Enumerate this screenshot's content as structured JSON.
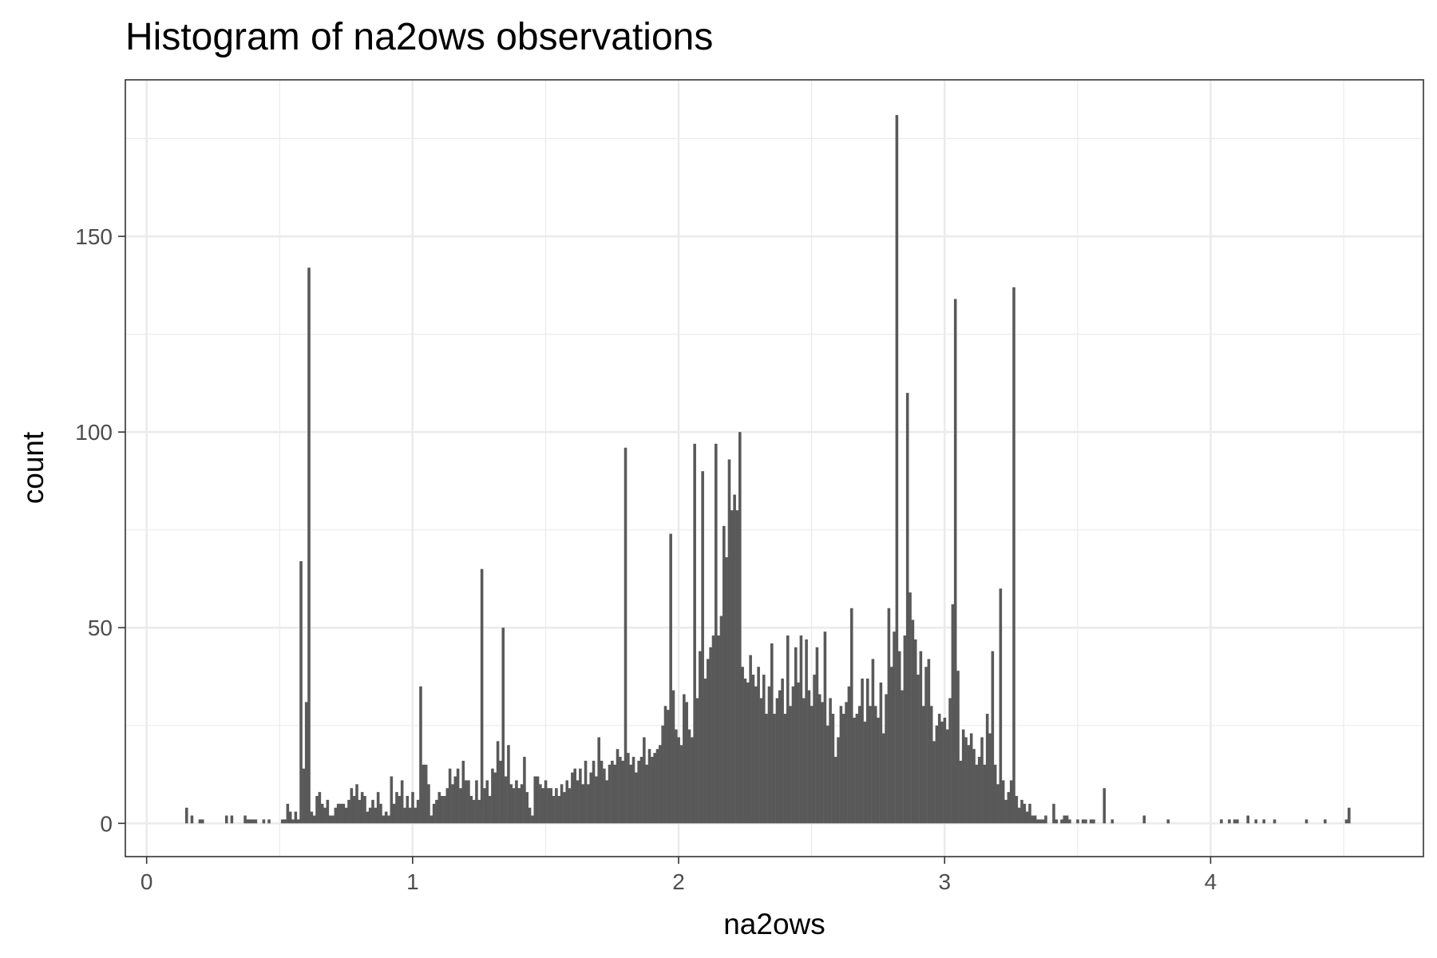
{
  "chart_data": {
    "type": "bar",
    "title": "Histogram of na2ows observations",
    "xlabel": "na2ows",
    "ylabel": "count",
    "xlim": [
      -0.08,
      4.8
    ],
    "ylim": [
      -8.5,
      190
    ],
    "x_ticks": [
      0,
      1,
      2,
      3,
      4
    ],
    "y_ticks": [
      0,
      50,
      100,
      150
    ],
    "x_tick_labels": [
      "0",
      "1",
      "2",
      "3",
      "4"
    ],
    "y_tick_labels": [
      "0",
      "50",
      "100",
      "150"
    ],
    "grid": true,
    "legend": "none",
    "bar_color": "#595959",
    "bin_width": 0.01,
    "bins": [
      [
        0.15,
        4
      ],
      [
        0.17,
        2
      ],
      [
        0.2,
        1
      ],
      [
        0.21,
        1
      ],
      [
        0.3,
        2
      ],
      [
        0.32,
        2
      ],
      [
        0.37,
        2
      ],
      [
        0.38,
        1
      ],
      [
        0.39,
        1
      ],
      [
        0.4,
        1
      ],
      [
        0.41,
        1
      ],
      [
        0.44,
        1
      ],
      [
        0.46,
        1
      ],
      [
        0.51,
        1
      ],
      [
        0.52,
        1
      ],
      [
        0.53,
        5
      ],
      [
        0.54,
        3
      ],
      [
        0.55,
        1
      ],
      [
        0.56,
        3
      ],
      [
        0.57,
        1
      ],
      [
        0.58,
        67
      ],
      [
        0.59,
        14
      ],
      [
        0.6,
        31
      ],
      [
        0.61,
        142
      ],
      [
        0.62,
        3
      ],
      [
        0.63,
        2
      ],
      [
        0.64,
        7
      ],
      [
        0.65,
        8
      ],
      [
        0.66,
        5
      ],
      [
        0.67,
        4
      ],
      [
        0.68,
        6
      ],
      [
        0.69,
        2
      ],
      [
        0.7,
        2
      ],
      [
        0.71,
        4
      ],
      [
        0.72,
        5
      ],
      [
        0.73,
        5
      ],
      [
        0.74,
        5
      ],
      [
        0.75,
        4
      ],
      [
        0.76,
        6
      ],
      [
        0.77,
        9
      ],
      [
        0.78,
        7
      ],
      [
        0.79,
        10
      ],
      [
        0.8,
        6
      ],
      [
        0.81,
        8
      ],
      [
        0.82,
        7
      ],
      [
        0.83,
        3
      ],
      [
        0.84,
        4
      ],
      [
        0.85,
        6
      ],
      [
        0.86,
        4
      ],
      [
        0.87,
        8
      ],
      [
        0.88,
        5
      ],
      [
        0.89,
        2
      ],
      [
        0.9,
        3
      ],
      [
        0.91,
        2
      ],
      [
        0.92,
        12
      ],
      [
        0.93,
        5
      ],
      [
        0.94,
        8
      ],
      [
        0.95,
        7
      ],
      [
        0.96,
        11
      ],
      [
        0.97,
        4
      ],
      [
        0.98,
        7
      ],
      [
        0.99,
        4
      ],
      [
        1.0,
        8
      ],
      [
        1.01,
        4
      ],
      [
        1.02,
        6
      ],
      [
        1.03,
        35
      ],
      [
        1.04,
        15
      ],
      [
        1.05,
        15
      ],
      [
        1.06,
        10
      ],
      [
        1.07,
        2
      ],
      [
        1.08,
        5
      ],
      [
        1.09,
        6
      ],
      [
        1.1,
        8
      ],
      [
        1.11,
        7
      ],
      [
        1.12,
        7
      ],
      [
        1.13,
        9
      ],
      [
        1.14,
        14
      ],
      [
        1.15,
        10
      ],
      [
        1.16,
        12
      ],
      [
        1.17,
        14
      ],
      [
        1.18,
        9
      ],
      [
        1.19,
        16
      ],
      [
        1.2,
        11
      ],
      [
        1.21,
        11
      ],
      [
        1.22,
        7
      ],
      [
        1.23,
        6
      ],
      [
        1.24,
        11
      ],
      [
        1.25,
        6
      ],
      [
        1.26,
        65
      ],
      [
        1.27,
        9
      ],
      [
        1.28,
        11
      ],
      [
        1.29,
        7
      ],
      [
        1.3,
        14
      ],
      [
        1.31,
        13
      ],
      [
        1.32,
        21
      ],
      [
        1.33,
        16
      ],
      [
        1.34,
        50
      ],
      [
        1.35,
        12
      ],
      [
        1.36,
        20
      ],
      [
        1.37,
        10
      ],
      [
        1.38,
        9
      ],
      [
        1.39,
        11
      ],
      [
        1.4,
        9
      ],
      [
        1.41,
        10
      ],
      [
        1.42,
        17
      ],
      [
        1.43,
        8
      ],
      [
        1.44,
        4
      ],
      [
        1.45,
        2
      ],
      [
        1.46,
        12
      ],
      [
        1.47,
        12
      ],
      [
        1.48,
        10
      ],
      [
        1.49,
        9
      ],
      [
        1.5,
        11
      ],
      [
        1.51,
        9
      ],
      [
        1.52,
        9
      ],
      [
        1.53,
        7
      ],
      [
        1.54,
        9
      ],
      [
        1.55,
        7
      ],
      [
        1.56,
        10
      ],
      [
        1.57,
        8
      ],
      [
        1.58,
        11
      ],
      [
        1.59,
        9
      ],
      [
        1.6,
        13
      ],
      [
        1.61,
        14
      ],
      [
        1.62,
        11
      ],
      [
        1.63,
        14
      ],
      [
        1.64,
        10
      ],
      [
        1.65,
        16
      ],
      [
        1.66,
        10
      ],
      [
        1.67,
        13
      ],
      [
        1.68,
        16
      ],
      [
        1.69,
        12
      ],
      [
        1.7,
        22
      ],
      [
        1.71,
        16
      ],
      [
        1.72,
        14
      ],
      [
        1.73,
        11
      ],
      [
        1.74,
        15
      ],
      [
        1.75,
        16
      ],
      [
        1.76,
        15
      ],
      [
        1.77,
        19
      ],
      [
        1.78,
        17
      ],
      [
        1.79,
        16
      ],
      [
        1.8,
        96
      ],
      [
        1.81,
        18
      ],
      [
        1.82,
        15
      ],
      [
        1.83,
        17
      ],
      [
        1.84,
        13
      ],
      [
        1.85,
        16
      ],
      [
        1.86,
        17
      ],
      [
        1.87,
        22
      ],
      [
        1.88,
        15
      ],
      [
        1.89,
        19
      ],
      [
        1.9,
        17
      ],
      [
        1.91,
        18
      ],
      [
        1.92,
        19
      ],
      [
        1.93,
        20
      ],
      [
        1.94,
        25
      ],
      [
        1.95,
        30
      ],
      [
        1.96,
        29
      ],
      [
        1.97,
        74
      ],
      [
        1.98,
        34
      ],
      [
        1.99,
        24
      ],
      [
        2.0,
        22
      ],
      [
        2.01,
        20
      ],
      [
        2.02,
        33
      ],
      [
        2.03,
        31
      ],
      [
        2.04,
        24
      ],
      [
        2.05,
        22
      ],
      [
        2.06,
        97
      ],
      [
        2.07,
        32
      ],
      [
        2.08,
        44
      ],
      [
        2.09,
        90
      ],
      [
        2.1,
        37
      ],
      [
        2.11,
        42
      ],
      [
        2.12,
        45
      ],
      [
        2.13,
        48
      ],
      [
        2.14,
        97
      ],
      [
        2.15,
        48
      ],
      [
        2.16,
        53
      ],
      [
        2.17,
        76
      ],
      [
        2.18,
        68
      ],
      [
        2.19,
        93
      ],
      [
        2.2,
        80
      ],
      [
        2.21,
        84
      ],
      [
        2.22,
        80
      ],
      [
        2.23,
        100
      ],
      [
        2.24,
        40
      ],
      [
        2.25,
        37
      ],
      [
        2.26,
        36
      ],
      [
        2.27,
        43
      ],
      [
        2.28,
        38
      ],
      [
        2.29,
        35
      ],
      [
        2.3,
        40
      ],
      [
        2.31,
        32
      ],
      [
        2.32,
        38
      ],
      [
        2.33,
        28
      ],
      [
        2.34,
        35
      ],
      [
        2.35,
        46
      ],
      [
        2.36,
        28
      ],
      [
        2.37,
        32
      ],
      [
        2.38,
        34
      ],
      [
        2.39,
        37
      ],
      [
        2.4,
        28
      ],
      [
        2.41,
        48
      ],
      [
        2.42,
        30
      ],
      [
        2.43,
        35
      ],
      [
        2.44,
        45
      ],
      [
        2.45,
        36
      ],
      [
        2.46,
        48
      ],
      [
        2.47,
        32
      ],
      [
        2.48,
        47
      ],
      [
        2.49,
        34
      ],
      [
        2.5,
        30
      ],
      [
        2.51,
        38
      ],
      [
        2.52,
        45
      ],
      [
        2.53,
        33
      ],
      [
        2.54,
        31
      ],
      [
        2.55,
        49
      ],
      [
        2.56,
        25
      ],
      [
        2.57,
        32
      ],
      [
        2.58,
        28
      ],
      [
        2.59,
        17
      ],
      [
        2.6,
        22
      ],
      [
        2.61,
        30
      ],
      [
        2.62,
        28
      ],
      [
        2.63,
        31
      ],
      [
        2.64,
        35
      ],
      [
        2.65,
        55
      ],
      [
        2.66,
        27
      ],
      [
        2.67,
        28
      ],
      [
        2.68,
        30
      ],
      [
        2.69,
        37
      ],
      [
        2.7,
        26
      ],
      [
        2.71,
        37
      ],
      [
        2.72,
        30
      ],
      [
        2.73,
        42
      ],
      [
        2.74,
        30
      ],
      [
        2.75,
        27
      ],
      [
        2.76,
        36
      ],
      [
        2.77,
        23
      ],
      [
        2.78,
        33
      ],
      [
        2.79,
        55
      ],
      [
        2.8,
        40
      ],
      [
        2.81,
        49
      ],
      [
        2.82,
        181
      ],
      [
        2.83,
        44
      ],
      [
        2.84,
        34
      ],
      [
        2.85,
        48
      ],
      [
        2.86,
        110
      ],
      [
        2.87,
        59
      ],
      [
        2.88,
        52
      ],
      [
        2.89,
        47
      ],
      [
        2.9,
        38
      ],
      [
        2.91,
        44
      ],
      [
        2.92,
        30
      ],
      [
        2.93,
        40
      ],
      [
        2.94,
        42
      ],
      [
        2.95,
        30
      ],
      [
        2.96,
        21
      ],
      [
        2.97,
        25
      ],
      [
        2.98,
        28
      ],
      [
        2.99,
        26
      ],
      [
        3.0,
        27
      ],
      [
        3.01,
        24
      ],
      [
        3.02,
        32
      ],
      [
        3.03,
        56
      ],
      [
        3.04,
        134
      ],
      [
        3.05,
        39
      ],
      [
        3.06,
        16
      ],
      [
        3.07,
        24
      ],
      [
        3.08,
        22
      ],
      [
        3.09,
        20
      ],
      [
        3.1,
        23
      ],
      [
        3.11,
        19
      ],
      [
        3.12,
        15
      ],
      [
        3.13,
        17
      ],
      [
        3.14,
        22
      ],
      [
        3.15,
        15
      ],
      [
        3.16,
        28
      ],
      [
        3.17,
        23
      ],
      [
        3.18,
        44
      ],
      [
        3.19,
        15
      ],
      [
        3.2,
        10
      ],
      [
        3.21,
        60
      ],
      [
        3.22,
        11
      ],
      [
        3.23,
        6
      ],
      [
        3.24,
        8
      ],
      [
        3.25,
        11
      ],
      [
        3.26,
        137
      ],
      [
        3.27,
        7
      ],
      [
        3.28,
        4
      ],
      [
        3.29,
        6
      ],
      [
        3.3,
        5
      ],
      [
        3.31,
        3
      ],
      [
        3.32,
        5
      ],
      [
        3.33,
        2
      ],
      [
        3.34,
        2
      ],
      [
        3.35,
        1
      ],
      [
        3.36,
        1
      ],
      [
        3.37,
        1
      ],
      [
        3.38,
        2
      ],
      [
        3.41,
        5
      ],
      [
        3.42,
        1
      ],
      [
        3.44,
        1
      ],
      [
        3.45,
        2
      ],
      [
        3.46,
        2
      ],
      [
        3.47,
        1
      ],
      [
        3.5,
        1
      ],
      [
        3.52,
        1
      ],
      [
        3.53,
        1
      ],
      [
        3.55,
        1
      ],
      [
        3.56,
        1
      ],
      [
        3.6,
        9
      ],
      [
        3.63,
        1
      ],
      [
        3.75,
        2
      ],
      [
        3.84,
        1
      ],
      [
        4.04,
        1
      ],
      [
        4.07,
        1
      ],
      [
        4.09,
        1
      ],
      [
        4.1,
        1
      ],
      [
        4.14,
        2
      ],
      [
        4.17,
        1
      ],
      [
        4.2,
        1
      ],
      [
        4.24,
        1
      ],
      [
        4.36,
        1
      ],
      [
        4.43,
        1
      ],
      [
        4.51,
        1
      ],
      [
        4.52,
        4
      ]
    ]
  }
}
